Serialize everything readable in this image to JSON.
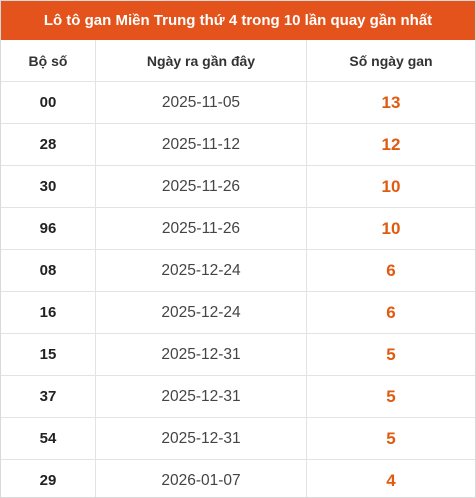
{
  "title": "Lô tô gan Miền Trung thứ 4 trong 10 lần quay gần nhất",
  "headers": {
    "bo_so": "Bộ số",
    "ngay_ra": "Ngày ra gần đây",
    "so_ngay_gan": "Số ngày gan"
  },
  "colors": {
    "title_bg": "#e4531b",
    "days_text": "#e05a10"
  },
  "rows": [
    {
      "bo_so": "00",
      "ngay_ra": "2025-11-05",
      "so_ngay_gan": "13"
    },
    {
      "bo_so": "28",
      "ngay_ra": "2025-11-12",
      "so_ngay_gan": "12"
    },
    {
      "bo_so": "30",
      "ngay_ra": "2025-11-26",
      "so_ngay_gan": "10"
    },
    {
      "bo_so": "96",
      "ngay_ra": "2025-11-26",
      "so_ngay_gan": "10"
    },
    {
      "bo_so": "08",
      "ngay_ra": "2025-12-24",
      "so_ngay_gan": "6"
    },
    {
      "bo_so": "16",
      "ngay_ra": "2025-12-24",
      "so_ngay_gan": "6"
    },
    {
      "bo_so": "15",
      "ngay_ra": "2025-12-31",
      "so_ngay_gan": "5"
    },
    {
      "bo_so": "37",
      "ngay_ra": "2025-12-31",
      "so_ngay_gan": "5"
    },
    {
      "bo_so": "54",
      "ngay_ra": "2025-12-31",
      "so_ngay_gan": "5"
    },
    {
      "bo_so": "29",
      "ngay_ra": "2026-01-07",
      "so_ngay_gan": "4"
    }
  ]
}
